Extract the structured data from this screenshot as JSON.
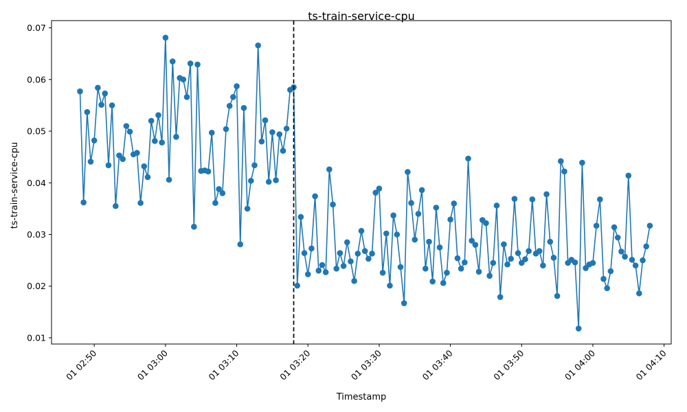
{
  "chart_data": {
    "type": "line",
    "title": "ts-train-service-cpu",
    "xlabel": "Timestamp",
    "ylabel": "ts-train-service-cpu",
    "x_range": [
      "01 02:44",
      "01 04:11"
    ],
    "ylim": [
      0.0088,
      0.0714
    ],
    "x_ticks": [
      "01 02:50",
      "01 03:00",
      "01 03:10",
      "01 03:20",
      "01 03:30",
      "01 03:40",
      "01 03:50",
      "01 04:00",
      "01 04:10"
    ],
    "y_ticks": [
      "0.01",
      "0.02",
      "0.03",
      "0.04",
      "0.05",
      "0.06",
      "0.07"
    ],
    "grid": false,
    "marker": "circle",
    "color": "#1f77b4",
    "vline": {
      "x": "01 03:18",
      "style": "dashed",
      "color": "#000000"
    },
    "series": [
      {
        "x_start": "01 02:48",
        "x_step_seconds": 30,
        "values": [
          0.0577,
          0.0362,
          0.0537,
          0.0441,
          0.0482,
          0.0584,
          0.0551,
          0.0573,
          0.0434,
          0.055,
          0.0355,
          0.0453,
          0.0446,
          0.051,
          0.0499,
          0.0455,
          0.0458,
          0.0361,
          0.0432,
          0.0411,
          0.052,
          0.0481,
          0.0531,
          0.0478,
          0.0681,
          0.0406,
          0.0635,
          0.0489,
          0.0603,
          0.06,
          0.0566,
          0.0631,
          0.0315,
          0.0629,
          0.0423,
          0.0424,
          0.0422,
          0.0497,
          0.0361,
          0.0388,
          0.038,
          0.0504,
          0.0549,
          0.0566,
          0.0587,
          0.0281,
          0.0545,
          0.035,
          0.0404,
          0.0434,
          0.0666,
          0.048,
          0.0521,
          0.0402,
          0.0498,
          0.0405,
          0.0494,
          0.0462,
          0.0505,
          0.058,
          0.0585,
          0.0201,
          0.0334,
          0.0264,
          0.0223,
          0.0273,
          0.0374,
          0.023,
          0.0241,
          0.0227,
          0.0426,
          0.0358,
          0.0234,
          0.0264,
          0.0239,
          0.0285,
          0.0248,
          0.021,
          0.0263,
          0.0307,
          0.0268,
          0.0253,
          0.0263,
          0.0381,
          0.0389,
          0.0226,
          0.0302,
          0.0201,
          0.0337,
          0.03,
          0.0237,
          0.0167,
          0.0421,
          0.0361,
          0.029,
          0.034,
          0.0386,
          0.0234,
          0.0286,
          0.0209,
          0.0352,
          0.0275,
          0.0206,
          0.0226,
          0.0329,
          0.036,
          0.0254,
          0.0234,
          0.0246,
          0.0447,
          0.0288,
          0.028,
          0.0228,
          0.0328,
          0.0322,
          0.022,
          0.0245,
          0.0356,
          0.0179,
          0.0281,
          0.0242,
          0.0253,
          0.0369,
          0.0264,
          0.0245,
          0.0252,
          0.0268,
          0.0368,
          0.0263,
          0.0268,
          0.024,
          0.0378,
          0.0286,
          0.0255,
          0.0181,
          0.0442,
          0.0422,
          0.0245,
          0.0251,
          0.0246,
          0.0118,
          0.0439,
          0.0235,
          0.0242,
          0.0245,
          0.0317,
          0.0368,
          0.0214,
          0.0196,
          0.0229,
          0.0314,
          0.0294,
          0.0267,
          0.0257,
          0.0414,
          0.0251,
          0.024,
          0.0186,
          0.025,
          0.0277,
          0.0317
        ]
      }
    ]
  }
}
